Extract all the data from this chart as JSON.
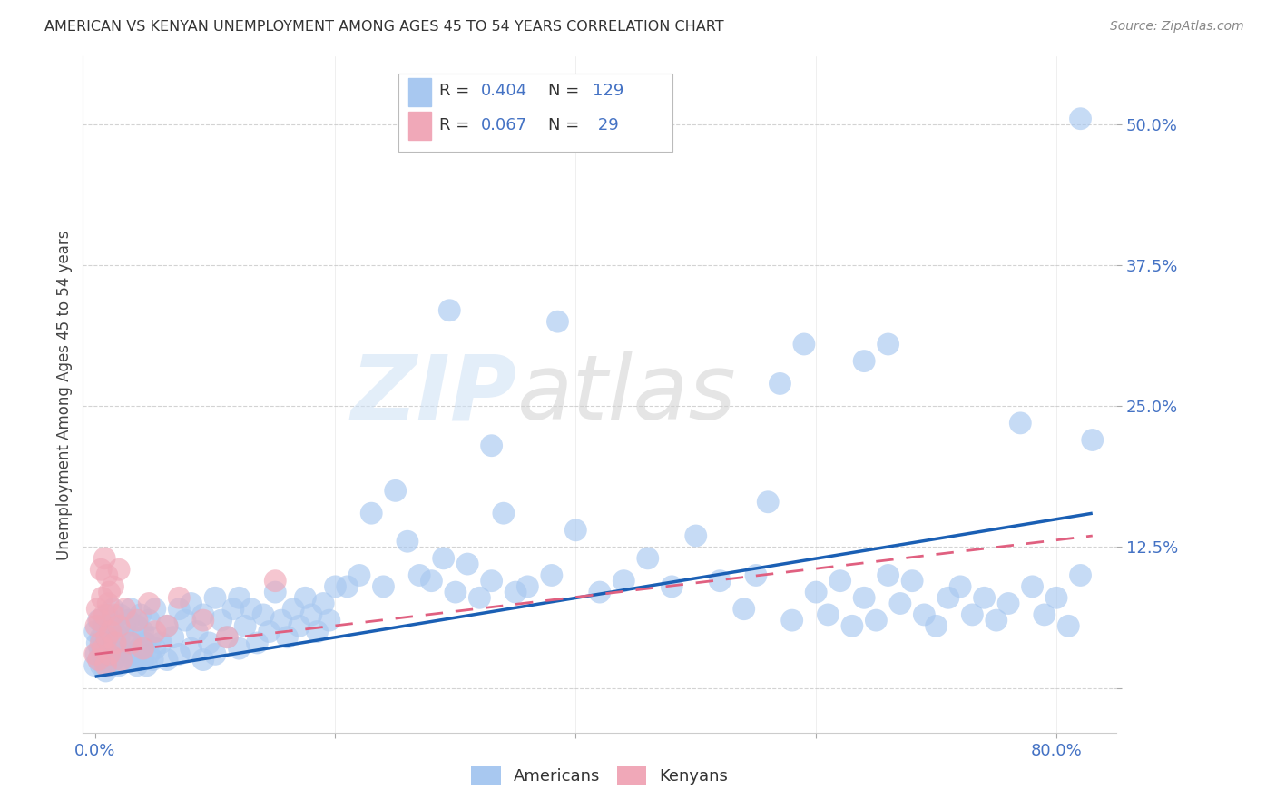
{
  "title": "AMERICAN VS KENYAN UNEMPLOYMENT AMONG AGES 45 TO 54 YEARS CORRELATION CHART",
  "source": "Source: ZipAtlas.com",
  "ylabel": "Unemployment Among Ages 45 to 54 years",
  "xlim": [
    -0.01,
    0.85
  ],
  "ylim": [
    -0.04,
    0.56
  ],
  "xticks": [
    0.0,
    0.2,
    0.4,
    0.6,
    0.8
  ],
  "xticklabels": [
    "0.0%",
    "",
    "",
    "",
    "80.0%"
  ],
  "yticks": [
    0.0,
    0.125,
    0.25,
    0.375,
    0.5
  ],
  "yticklabels": [
    "",
    "12.5%",
    "25.0%",
    "37.5%",
    "50.0%"
  ],
  "american_R": 0.404,
  "american_N": 129,
  "kenyan_R": 0.067,
  "kenyan_N": 29,
  "american_color": "#a8c8f0",
  "kenyan_color": "#f0a8b8",
  "american_line_color": "#1a5fb4",
  "kenyan_line_color": "#e06080",
  "grid_color": "#c8c8c8",
  "background_color": "#ffffff",
  "am_line_x0": 0.0,
  "am_line_x1": 0.83,
  "am_line_y0": 0.01,
  "am_line_y1": 0.155,
  "ke_line_x0": 0.0,
  "ke_line_x1": 0.83,
  "ke_line_y0": 0.03,
  "ke_line_y1": 0.135
}
